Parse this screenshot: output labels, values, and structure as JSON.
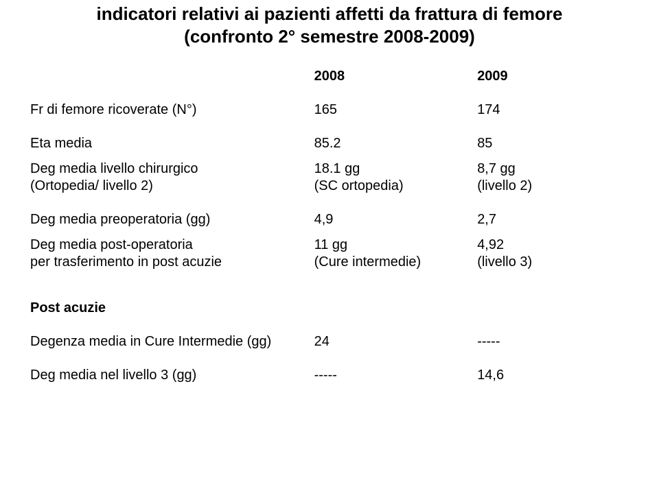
{
  "title": {
    "line1": "indicatori relativi ai pazienti affetti da frattura di femore",
    "line2": "(confronto 2° semestre 2008-2009)"
  },
  "header": {
    "col2": "2008",
    "col3": "2009"
  },
  "rows": {
    "r1": {
      "label": "Fr di femore ricoverate (N°)",
      "v2008": "165",
      "v2009": "174"
    },
    "r2": {
      "label": "Eta media",
      "v2008": "85.2",
      "v2009": "85"
    },
    "r3": {
      "label1": " Deg media livello chirurgico",
      "label2": "(Ortopedia/ livello 2)",
      "v2008a": " 18.1 gg",
      "v2008b": "(SC ortopedia)",
      "v2009a": " 8,7 gg",
      "v2009b": "(livello 2)"
    },
    "r4": {
      "label": "Deg media preoperatoria (gg)",
      "v2008": "4,9",
      "v2009": "2,7"
    },
    "r5": {
      "label1": " Deg media post-operatoria",
      "label2": "per trasferimento in post acuzie",
      "v2008a": " 11 gg",
      "v2008b": "(Cure intermedie)",
      "v2009a": " 4,92",
      "v2009b": "(livello 3)"
    },
    "section": "Post acuzie",
    "r6": {
      "label": "Degenza media in Cure Intermedie (gg)",
      "v2008": "24",
      "v2009": "-----"
    },
    "r7": {
      "label": "Deg media nel livello 3 (gg)",
      "v2008": "-----",
      "v2009": "14,6"
    }
  }
}
